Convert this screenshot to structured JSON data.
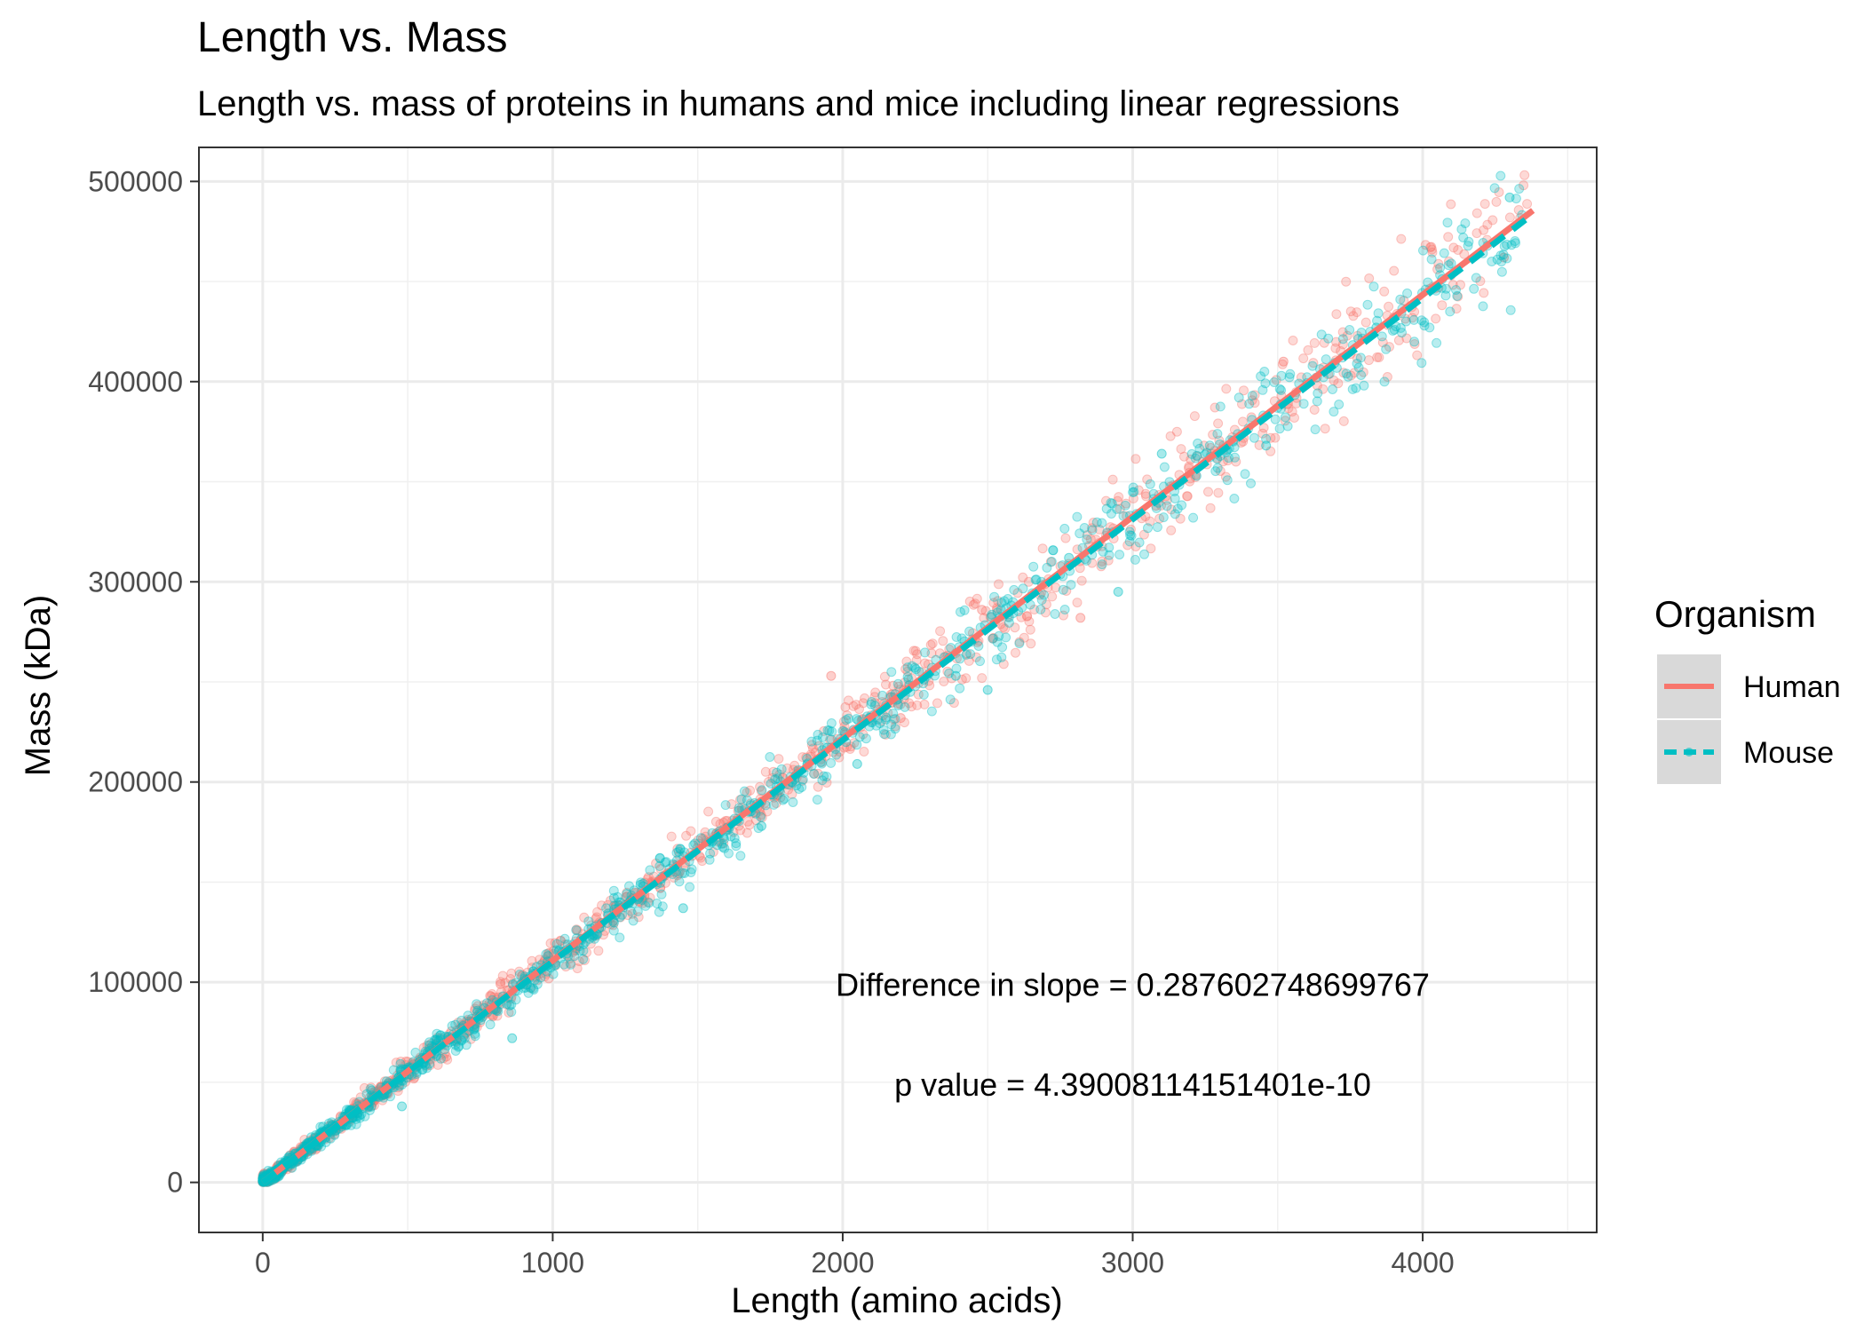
{
  "chart_data": {
    "type": "scatter",
    "title": "Length vs. Mass",
    "subtitle": "Length vs. mass of proteins in humans and mice including linear regressions",
    "xlabel": "Length (amino acids)",
    "ylabel": "Mass (kDa)",
    "xlim": [
      -220,
      4600
    ],
    "ylim": [
      -25000,
      517000
    ],
    "x_ticks": [
      0,
      1000,
      2000,
      3000,
      4000
    ],
    "x_tick_labels": [
      "0",
      "1000",
      "2000",
      "3000",
      "4000"
    ],
    "y_ticks": [
      0,
      100000,
      200000,
      300000,
      400000,
      500000
    ],
    "y_tick_labels": [
      "0",
      "100000",
      "200000",
      "300000",
      "400000",
      "500000"
    ],
    "grid": true,
    "legend": {
      "title": "Organism",
      "position": "right"
    },
    "series": [
      {
        "name": "Human",
        "color": "#F8766D",
        "line_style": "solid",
        "regression": {
          "x": [
            0,
            4380
          ],
          "y": [
            0,
            485500
          ]
        },
        "points": [
          [
            5,
            600
          ],
          [
            120,
            13500
          ],
          [
            300,
            33500
          ],
          [
            520,
            59000
          ],
          [
            640,
            71500
          ],
          [
            820,
            99000
          ],
          [
            1080,
            117000
          ],
          [
            1300,
            140000
          ],
          [
            1480,
            163000
          ],
          [
            1720,
            190000
          ],
          [
            1960,
            253000
          ],
          [
            2200,
            232000
          ],
          [
            2480,
            286000
          ],
          [
            2820,
            282000
          ],
          [
            3080,
            338000
          ],
          [
            3520,
            410000
          ],
          [
            3900,
            432000
          ],
          [
            4280,
            462000
          ]
        ]
      },
      {
        "name": "Mouse",
        "color": "#00BFC4",
        "line_style": "dashed",
        "regression": {
          "x": [
            0,
            4360
          ],
          "y": [
            0,
            481500
          ]
        },
        "points": [
          [
            8,
            800
          ],
          [
            140,
            15000
          ],
          [
            480,
            38000
          ],
          [
            860,
            72000
          ],
          [
            1160,
            127000
          ],
          [
            1450,
            137000
          ],
          [
            1720,
            178000
          ],
          [
            2050,
            209000
          ],
          [
            2390,
            253000
          ],
          [
            2500,
            246000
          ],
          [
            2780,
            312000
          ],
          [
            2950,
            295000
          ],
          [
            3100,
            364000
          ],
          [
            3460,
            368000
          ],
          [
            3840,
            427000
          ],
          [
            4300,
            492000
          ]
        ]
      }
    ],
    "annotations": [
      {
        "text": "Difference in slope = 0.287602748699767",
        "x": 3000,
        "y": 99000
      },
      {
        "text": "p value = 4.39008114151401e-10",
        "x": 3000,
        "y": 49000
      }
    ]
  }
}
